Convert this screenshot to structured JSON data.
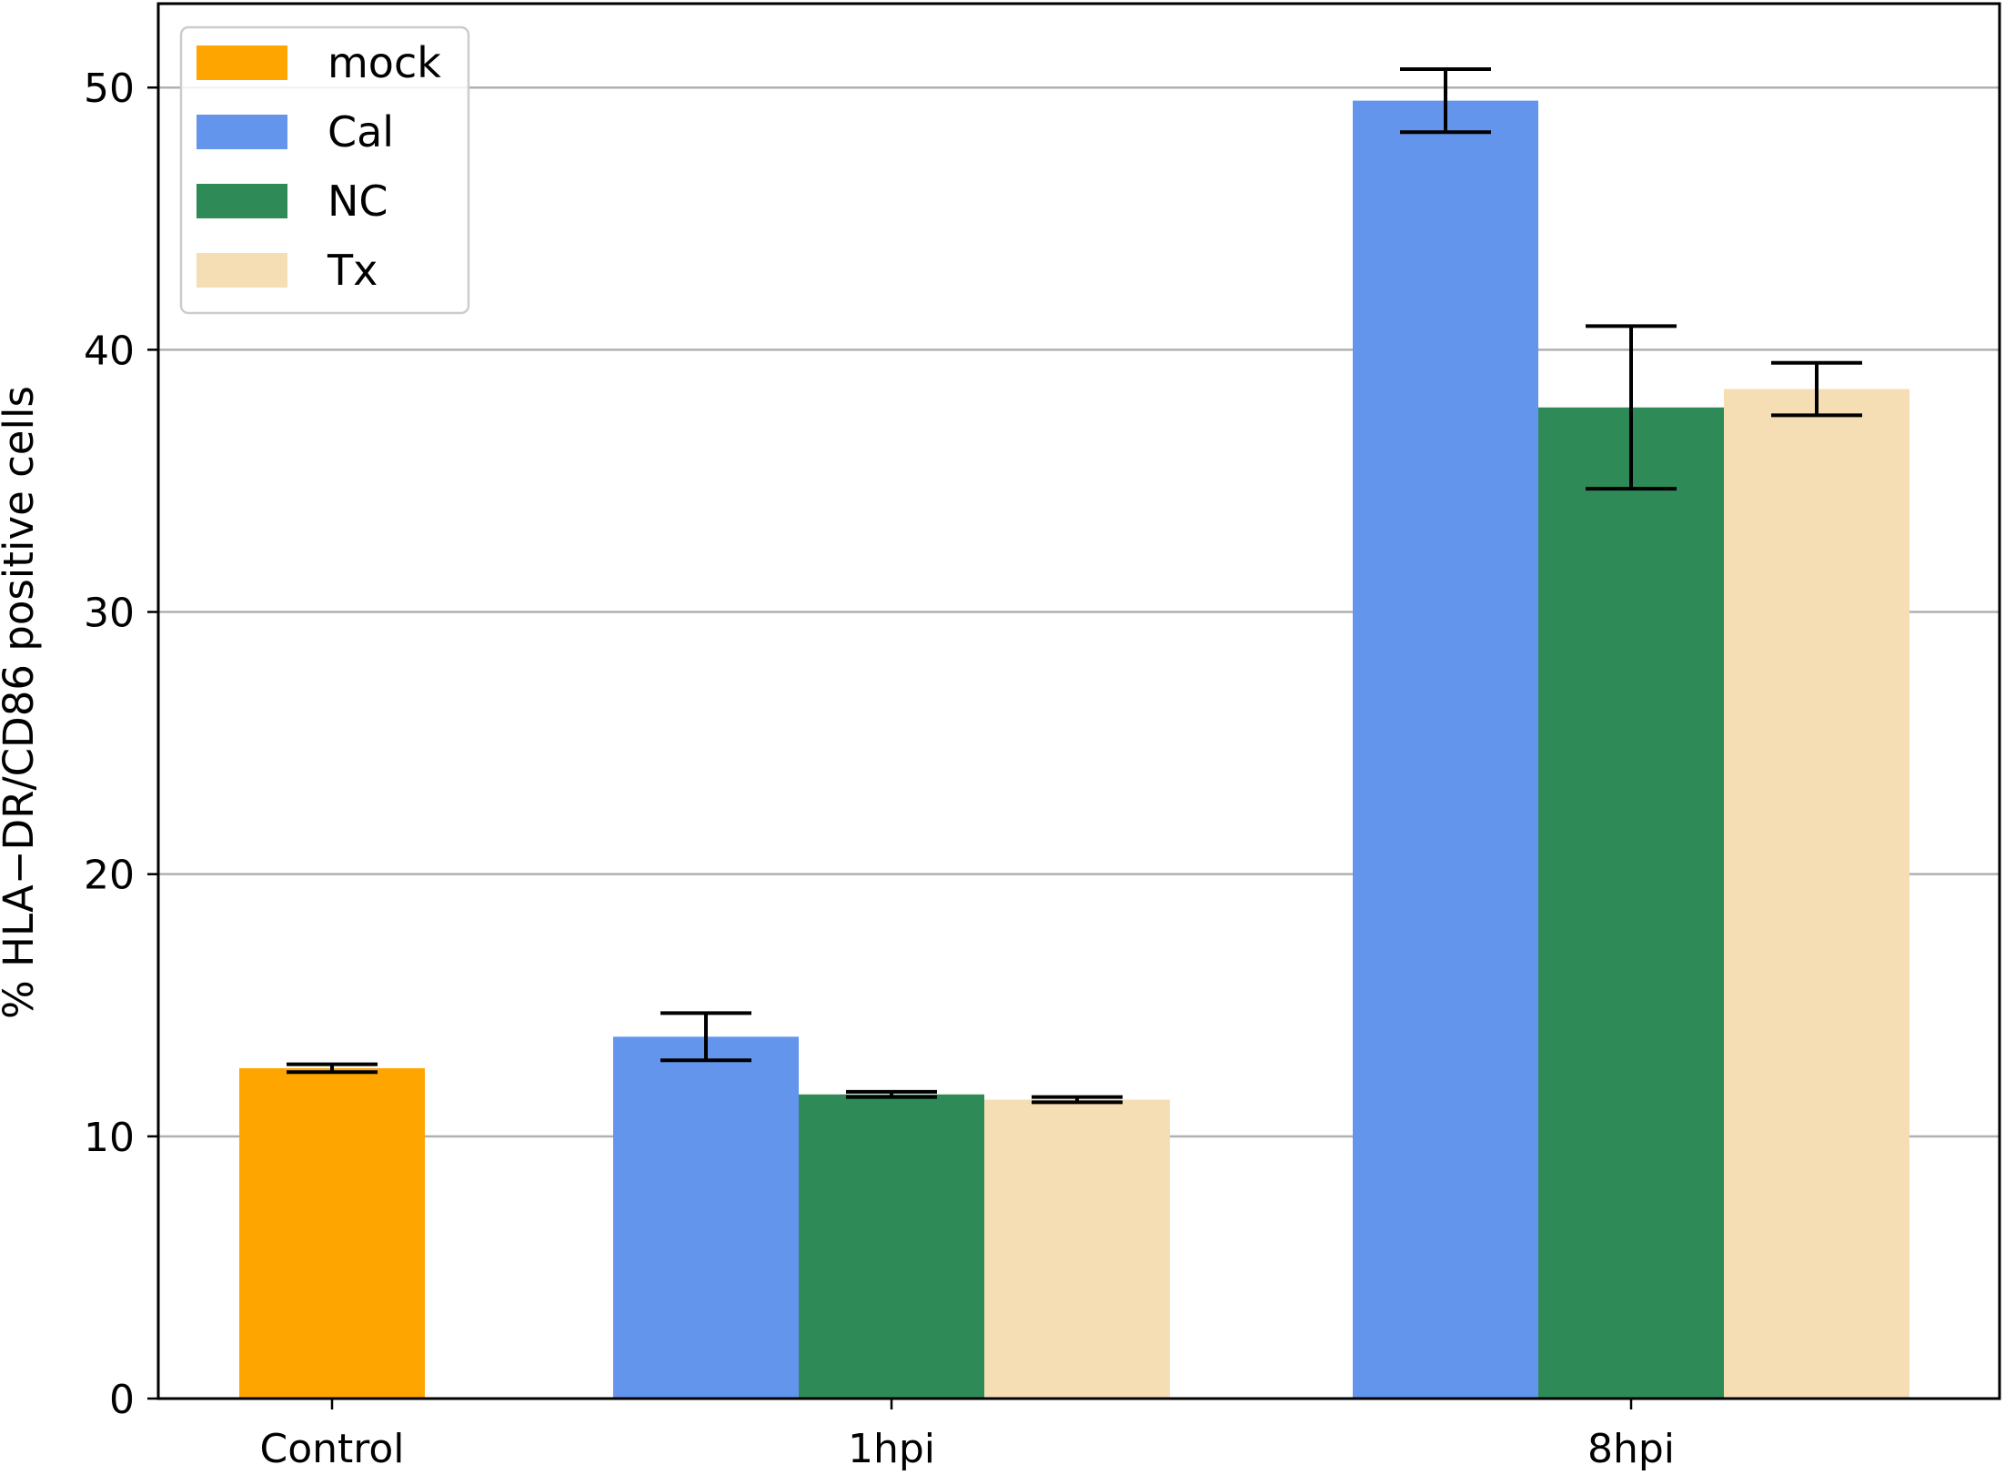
{
  "chart_data": {
    "type": "bar",
    "title": "",
    "xlabel": "",
    "ylabel": "% HLA−DR/CD86 positive cells",
    "categories": [
      "Control",
      "1hpi",
      "8hpi"
    ],
    "ylim": [
      0,
      53.2
    ],
    "yticks": [
      0,
      10,
      20,
      30,
      40,
      50
    ],
    "grid": "horizontal",
    "legend_position": "top-left",
    "series": [
      {
        "name": "mock",
        "color": "#FFA500",
        "values": [
          12.6,
          null,
          null
        ],
        "errors": [
          0.15,
          null,
          null
        ]
      },
      {
        "name": "Cal",
        "color": "#6495ED",
        "values": [
          null,
          13.8,
          49.5
        ],
        "errors": [
          null,
          0.9,
          1.2
        ]
      },
      {
        "name": "NC",
        "color": "#2E8B57",
        "values": [
          null,
          11.6,
          37.8
        ],
        "errors": [
          null,
          0.1,
          3.1
        ]
      },
      {
        "name": "Tx",
        "color": "#F5DEB3",
        "values": [
          null,
          11.4,
          38.5
        ],
        "errors": [
          null,
          0.1,
          1.0
        ]
      }
    ]
  }
}
